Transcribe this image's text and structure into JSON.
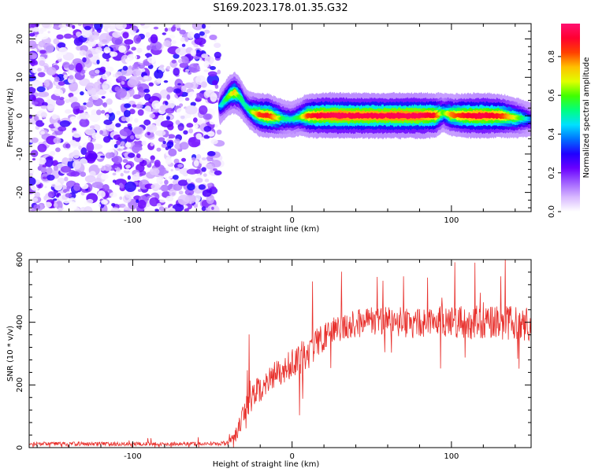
{
  "figure": {
    "title": "S169.2023.178.01.35.G32"
  },
  "chart_data": [
    {
      "type": "heatmap",
      "xlabel": "Height of straight line (km)",
      "ylabel": "Frequency (Hz)",
      "xlim": [
        -165,
        150
      ],
      "ylim": [
        -25,
        24
      ],
      "xticks": [
        -100,
        0,
        100
      ],
      "yticks": [
        -20,
        -10,
        0,
        10,
        20
      ],
      "colorbar": {
        "label": "Normalized spectral amplitude",
        "range": [
          0,
          0.97
        ],
        "ticks": [
          "0.0",
          "0.2",
          "0.4",
          "0.6",
          "0.8"
        ],
        "colors": [
          "#ffffff",
          "#d8b8ff",
          "#a060ff",
          "#6a00ff",
          "#2000ff",
          "#0070ff",
          "#00e0ff",
          "#00ff80",
          "#40ff00",
          "#e0ff00",
          "#ffc000",
          "#ff4000",
          "#ff0030",
          "#ff1070"
        ]
      },
      "noise_region_x": [
        -165,
        -45
      ],
      "ridge": {
        "x": [
          -45,
          -42,
          -39,
          -36,
          -33,
          -30,
          -27,
          -24,
          -20,
          -15,
          -10,
          -5,
          0,
          5,
          10,
          15,
          20,
          30,
          40,
          60,
          80,
          90,
          95,
          100,
          110,
          120,
          130,
          140,
          150
        ],
        "y": [
          2.5,
          4.0,
          5.5,
          6.0,
          5.0,
          3.0,
          1.5,
          0.8,
          0.2,
          0.0,
          -0.5,
          -0.8,
          -1.0,
          -0.3,
          0.0,
          0.0,
          0.1,
          0.0,
          0.0,
          0.0,
          0.0,
          0.1,
          0.8,
          0.2,
          0.0,
          0.0,
          0.0,
          -0.5,
          -1.0
        ],
        "intensity": [
          0.45,
          0.55,
          0.65,
          0.75,
          0.6,
          0.5,
          0.55,
          0.7,
          0.85,
          0.9,
          0.75,
          0.55,
          0.5,
          0.6,
          0.85,
          0.92,
          0.95,
          0.97,
          0.95,
          0.96,
          0.97,
          0.9,
          0.6,
          0.8,
          0.92,
          0.95,
          0.9,
          0.7,
          0.4
        ]
      }
    },
    {
      "type": "line",
      "xlabel": "Height of straight line (km)",
      "ylabel": "SNR (10 * v/v)",
      "xlim": [
        -165,
        150
      ],
      "ylim": [
        0,
        600
      ],
      "xticks": [
        -100,
        0,
        100
      ],
      "yticks": [
        0,
        200,
        400,
        600
      ],
      "color": "#e8302c",
      "envelope": {
        "x": [
          -165,
          -45,
          -40,
          -35,
          -30,
          -25,
          -20,
          -15,
          -10,
          -5,
          0,
          5,
          10,
          15,
          20,
          25,
          30,
          40,
          50,
          60,
          70,
          80,
          90,
          100,
          110,
          120,
          130,
          140,
          150
        ],
        "mean": [
          12,
          12,
          15,
          40,
          100,
          165,
          185,
          215,
          240,
          250,
          270,
          285,
          305,
          330,
          355,
          370,
          385,
          395,
          405,
          405,
          400,
          395,
          400,
          405,
          400,
          400,
          395,
          400,
          395
        ],
        "spread": [
          6,
          6,
          10,
          30,
          55,
          50,
          45,
          45,
          45,
          45,
          45,
          50,
          55,
          50,
          45,
          45,
          45,
          45,
          45,
          50,
          50,
          50,
          50,
          55,
          55,
          55,
          55,
          55,
          55
        ]
      }
    }
  ]
}
